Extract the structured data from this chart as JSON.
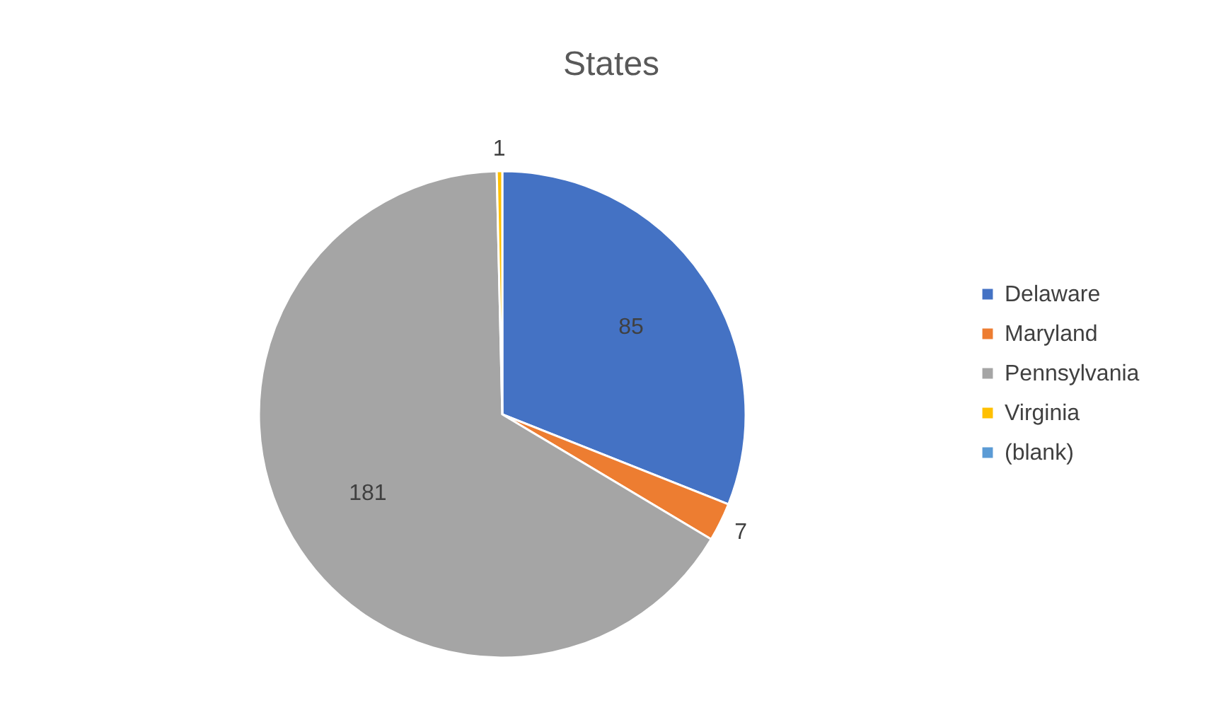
{
  "chart_data": {
    "type": "pie",
    "title": "States",
    "categories": [
      "Delaware",
      "Maryland",
      "Pennsylvania",
      "Virginia",
      "(blank)"
    ],
    "values": [
      85,
      7,
      181,
      1,
      null
    ],
    "colors": [
      "#4472c4",
      "#ed7d31",
      "#a5a5a5",
      "#ffc000",
      "#5b9bd5"
    ],
    "data_labels": true,
    "legend": "right"
  }
}
